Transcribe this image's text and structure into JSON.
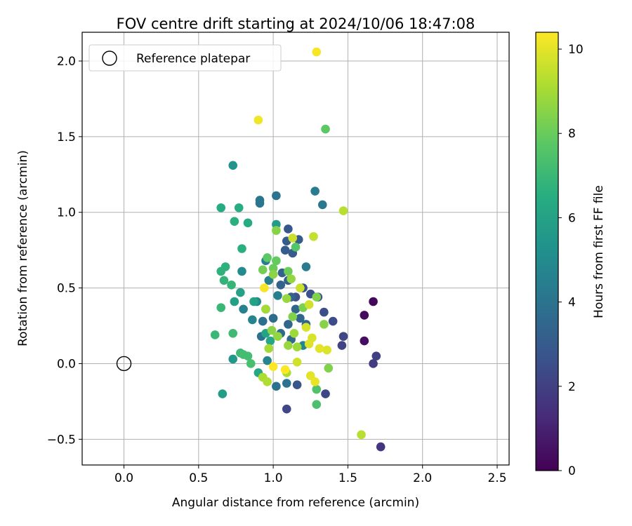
{
  "chart_data": {
    "type": "scatter",
    "title": "FOV centre drift starting at 2024/10/06 18:47:08",
    "xlabel": "Angular distance from reference (arcmin)",
    "ylabel": "Rotation from reference (arcmin)",
    "xlim": [
      -0.28,
      2.58
    ],
    "ylim": [
      -0.67,
      2.19
    ],
    "xticks": [
      0.0,
      0.5,
      1.0,
      1.5,
      2.0,
      2.5
    ],
    "yticks": [
      -0.5,
      0.0,
      0.5,
      1.0,
      1.5,
      2.0
    ],
    "xtick_labels": [
      "0.0",
      "0.5",
      "1.0",
      "1.5",
      "2.0",
      "2.5"
    ],
    "ytick_labels": [
      "−0.5",
      "0.0",
      "0.5",
      "1.0",
      "1.5",
      "2.0"
    ],
    "grid": true,
    "legend": {
      "position": "top-left",
      "entries": [
        {
          "label": "Reference platepar",
          "marker": "open-circle",
          "color": "#000000"
        }
      ]
    },
    "reference_point": {
      "label": "Reference platepar",
      "x": 0.0,
      "y": 0.0
    },
    "colorbar": {
      "label": "Hours from first FF file",
      "min": 0,
      "max": 10.4,
      "ticks": [
        0,
        2,
        4,
        6,
        8,
        10
      ],
      "tick_labels": [
        "0",
        "2",
        "4",
        "6",
        "8",
        "10"
      ],
      "colormap": "viridis"
    },
    "series": [
      {
        "points": [
          {
            "x": 1.67,
            "y": 0.41,
            "c": 0.2
          },
          {
            "x": 1.61,
            "y": 0.32,
            "c": 0.3
          },
          {
            "x": 1.61,
            "y": 0.15,
            "c": 0.4
          },
          {
            "x": 1.72,
            "y": -0.55,
            "c": 1.6
          },
          {
            "x": 1.67,
            "y": 0.0,
            "c": 1.9
          },
          {
            "x": 1.69,
            "y": 0.05,
            "c": 2.0
          },
          {
            "x": 1.46,
            "y": 0.12,
            "c": 2.1
          },
          {
            "x": 1.47,
            "y": 0.18,
            "c": 2.2
          },
          {
            "x": 1.35,
            "y": -0.2,
            "c": 2.2
          },
          {
            "x": 1.09,
            "y": -0.3,
            "c": 2.3
          },
          {
            "x": 1.4,
            "y": 0.28,
            "c": 2.4
          },
          {
            "x": 1.34,
            "y": 0.34,
            "c": 2.5
          },
          {
            "x": 1.3,
            "y": 0.44,
            "c": 2.6
          },
          {
            "x": 1.25,
            "y": 0.46,
            "c": 2.6
          },
          {
            "x": 1.2,
            "y": 0.5,
            "c": 2.7
          },
          {
            "x": 1.15,
            "y": 0.44,
            "c": 2.7
          },
          {
            "x": 1.16,
            "y": -0.14,
            "c": 2.8
          },
          {
            "x": 1.1,
            "y": 0.89,
            "c": 2.9
          },
          {
            "x": 1.17,
            "y": 0.82,
            "c": 3.0
          },
          {
            "x": 1.13,
            "y": 0.73,
            "c": 3.0
          },
          {
            "x": 1.08,
            "y": 0.75,
            "c": 3.1
          },
          {
            "x": 1.09,
            "y": 0.81,
            "c": 3.1
          },
          {
            "x": 1.06,
            "y": 0.6,
            "c": 3.2
          },
          {
            "x": 1.1,
            "y": 0.55,
            "c": 3.2
          },
          {
            "x": 1.05,
            "y": 0.52,
            "c": 3.3
          },
          {
            "x": 1.12,
            "y": 0.44,
            "c": 3.3
          },
          {
            "x": 1.15,
            "y": 0.36,
            "c": 3.4
          },
          {
            "x": 1.18,
            "y": 0.3,
            "c": 3.4
          },
          {
            "x": 1.22,
            "y": 0.26,
            "c": 3.5
          },
          {
            "x": 1.1,
            "y": 0.26,
            "c": 3.5
          },
          {
            "x": 1.05,
            "y": 0.2,
            "c": 3.6
          },
          {
            "x": 1.12,
            "y": 0.16,
            "c": 3.6
          },
          {
            "x": 1.0,
            "y": 0.3,
            "c": 3.7
          },
          {
            "x": 0.95,
            "y": 0.36,
            "c": 3.7
          },
          {
            "x": 0.93,
            "y": 0.28,
            "c": 3.8
          },
          {
            "x": 0.92,
            "y": 0.18,
            "c": 3.9
          },
          {
            "x": 1.02,
            "y": -0.15,
            "c": 3.9
          },
          {
            "x": 1.09,
            "y": -0.13,
            "c": 4.0
          },
          {
            "x": 1.02,
            "y": 1.11,
            "c": 4.0
          },
          {
            "x": 0.91,
            "y": 1.08,
            "c": 4.1
          },
          {
            "x": 0.91,
            "y": 1.06,
            "c": 4.1
          },
          {
            "x": 1.33,
            "y": 1.05,
            "c": 4.2
          },
          {
            "x": 1.28,
            "y": 1.14,
            "c": 4.3
          },
          {
            "x": 1.22,
            "y": 0.64,
            "c": 4.3
          },
          {
            "x": 0.95,
            "y": 0.68,
            "c": 4.4
          },
          {
            "x": 0.97,
            "y": 0.55,
            "c": 4.5
          },
          {
            "x": 1.03,
            "y": 0.45,
            "c": 4.5
          },
          {
            "x": 0.8,
            "y": 0.36,
            "c": 4.6
          },
          {
            "x": 0.86,
            "y": 0.29,
            "c": 4.7
          },
          {
            "x": 0.96,
            "y": 0.02,
            "c": 4.7
          },
          {
            "x": 1.2,
            "y": 0.12,
            "c": 4.8
          },
          {
            "x": 0.89,
            "y": 0.41,
            "c": 4.9
          },
          {
            "x": 0.79,
            "y": 0.61,
            "c": 5.0
          },
          {
            "x": 0.73,
            "y": 1.31,
            "c": 5.4
          },
          {
            "x": 0.73,
            "y": 0.03,
            "c": 5.5
          },
          {
            "x": 1.02,
            "y": 0.92,
            "c": 5.7
          },
          {
            "x": 0.66,
            "y": -0.2,
            "c": 5.8
          },
          {
            "x": 0.74,
            "y": 0.41,
            "c": 5.9
          },
          {
            "x": 0.78,
            "y": 0.47,
            "c": 6.0
          },
          {
            "x": 0.87,
            "y": 0.41,
            "c": 6.0
          },
          {
            "x": 0.95,
            "y": 0.2,
            "c": 6.1
          },
          {
            "x": 0.98,
            "y": 0.15,
            "c": 6.2
          },
          {
            "x": 0.9,
            "y": -0.06,
            "c": 6.2
          },
          {
            "x": 0.83,
            "y": 0.93,
            "c": 6.4
          },
          {
            "x": 0.65,
            "y": 1.03,
            "c": 6.4
          },
          {
            "x": 0.77,
            "y": 1.03,
            "c": 6.5
          },
          {
            "x": 0.74,
            "y": 0.94,
            "c": 6.6
          },
          {
            "x": 0.79,
            "y": 0.76,
            "c": 6.6
          },
          {
            "x": 0.68,
            "y": 0.64,
            "c": 6.7
          },
          {
            "x": 0.65,
            "y": 0.61,
            "c": 6.7
          },
          {
            "x": 0.67,
            "y": 0.55,
            "c": 6.8
          },
          {
            "x": 0.72,
            "y": 0.52,
            "c": 6.9
          },
          {
            "x": 0.65,
            "y": 0.37,
            "c": 7.0
          },
          {
            "x": 0.61,
            "y": 0.19,
            "c": 7.0
          },
          {
            "x": 0.73,
            "y": 0.2,
            "c": 7.1
          },
          {
            "x": 0.78,
            "y": 0.07,
            "c": 7.1
          },
          {
            "x": 0.8,
            "y": 0.06,
            "c": 7.2
          },
          {
            "x": 0.83,
            "y": 0.05,
            "c": 7.2
          },
          {
            "x": 0.85,
            "y": 0.0,
            "c": 7.3
          },
          {
            "x": 1.29,
            "y": -0.27,
            "c": 7.4
          },
          {
            "x": 1.29,
            "y": -0.17,
            "c": 7.5
          },
          {
            "x": 1.35,
            "y": 1.55,
            "c": 7.8
          },
          {
            "x": 1.15,
            "y": 0.77,
            "c": 7.6
          },
          {
            "x": 0.96,
            "y": 0.7,
            "c": 7.8
          },
          {
            "x": 1.02,
            "y": 0.68,
            "c": 7.9
          },
          {
            "x": 1.0,
            "y": 0.63,
            "c": 8.0
          },
          {
            "x": 1.1,
            "y": 0.61,
            "c": 8.1
          },
          {
            "x": 0.93,
            "y": 0.62,
            "c": 8.2
          },
          {
            "x": 1.2,
            "y": 0.37,
            "c": 8.3
          },
          {
            "x": 1.13,
            "y": 0.31,
            "c": 8.4
          },
          {
            "x": 1.34,
            "y": 0.26,
            "c": 8.5
          },
          {
            "x": 0.99,
            "y": 0.22,
            "c": 8.6
          },
          {
            "x": 1.03,
            "y": 0.18,
            "c": 8.7
          },
          {
            "x": 1.1,
            "y": 0.12,
            "c": 8.8
          },
          {
            "x": 1.16,
            "y": 0.11,
            "c": 8.9
          },
          {
            "x": 0.97,
            "y": 0.1,
            "c": 9.0
          },
          {
            "x": 1.09,
            "y": -0.06,
            "c": 9.1
          },
          {
            "x": 0.93,
            "y": -0.09,
            "c": 9.1
          },
          {
            "x": 0.96,
            "y": -0.12,
            "c": 9.2
          },
          {
            "x": 1.37,
            "y": -0.03,
            "c": 8.4
          },
          {
            "x": 1.29,
            "y": 0.44,
            "c": 8.4
          },
          {
            "x": 1.02,
            "y": 0.88,
            "c": 8.5
          },
          {
            "x": 1.0,
            "y": 0.59,
            "c": 8.6
          },
          {
            "x": 1.12,
            "y": 0.56,
            "c": 8.7
          },
          {
            "x": 1.09,
            "y": 0.43,
            "c": 8.8
          },
          {
            "x": 1.14,
            "y": 0.2,
            "c": 8.9
          },
          {
            "x": 0.95,
            "y": 0.36,
            "c": 9.0
          },
          {
            "x": 1.47,
            "y": 1.01,
            "c": 9.3
          },
          {
            "x": 1.27,
            "y": 0.84,
            "c": 9.5
          },
          {
            "x": 1.13,
            "y": 0.83,
            "c": 9.6
          },
          {
            "x": 1.18,
            "y": 0.5,
            "c": 9.6
          },
          {
            "x": 1.24,
            "y": 0.39,
            "c": 9.7
          },
          {
            "x": 1.22,
            "y": 0.24,
            "c": 9.8
          },
          {
            "x": 1.26,
            "y": 0.17,
            "c": 9.8
          },
          {
            "x": 1.24,
            "y": 0.13,
            "c": 9.9
          },
          {
            "x": 1.36,
            "y": 0.09,
            "c": 9.9
          },
          {
            "x": 1.31,
            "y": 0.1,
            "c": 10.0
          },
          {
            "x": 1.16,
            "y": 0.01,
            "c": 9.7
          },
          {
            "x": 1.25,
            "y": -0.08,
            "c": 10.0
          },
          {
            "x": 1.28,
            "y": -0.12,
            "c": 10.1
          },
          {
            "x": 1.59,
            "y": -0.47,
            "c": 9.3
          },
          {
            "x": 0.9,
            "y": 1.61,
            "c": 10.2
          },
          {
            "x": 1.29,
            "y": 2.06,
            "c": 10.3
          },
          {
            "x": 0.94,
            "y": 0.5,
            "c": 10.3
          },
          {
            "x": 1.08,
            "y": -0.04,
            "c": 10.4
          },
          {
            "x": 1.0,
            "y": -0.02,
            "c": 10.4
          }
        ]
      }
    ]
  }
}
